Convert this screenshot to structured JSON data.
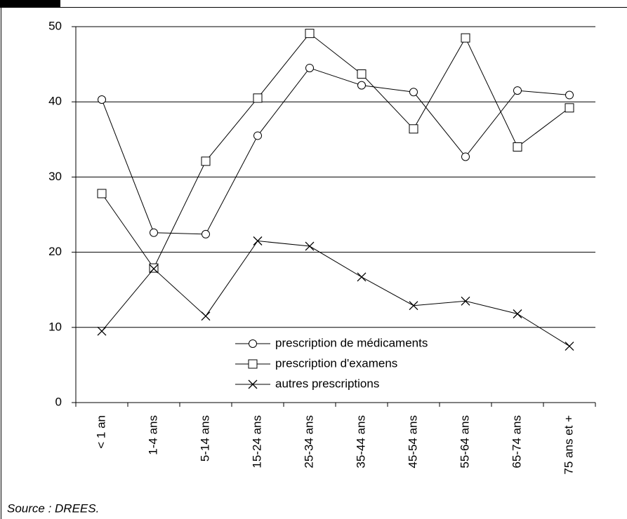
{
  "chart_data": {
    "type": "line",
    "categories": [
      "< 1 an",
      "1-4 ans",
      "5-14 ans",
      "15-24 ans",
      "25-34 ans",
      "35-44 ans",
      "45-54 ans",
      "55-64 ans",
      "65-74 ans",
      "75 ans et +"
    ],
    "series": [
      {
        "name": "prescription de médicaments",
        "color": "#000000",
        "marker": "circle",
        "values": [
          40.3,
          22.6,
          22.4,
          35.5,
          44.5,
          42.2,
          41.3,
          32.7,
          41.5,
          40.9
        ]
      },
      {
        "name": "prescription d'examens",
        "color": "#000000",
        "marker": "square",
        "values": [
          27.8,
          17.9,
          32.1,
          40.5,
          49.1,
          43.7,
          36.4,
          48.5,
          34.0,
          39.2
        ]
      },
      {
        "name": "autres prescriptions",
        "color": "#000000",
        "marker": "x",
        "values": [
          9.5,
          17.8,
          11.5,
          21.5,
          20.8,
          16.7,
          12.9,
          13.5,
          11.8,
          7.5
        ]
      }
    ],
    "ylim": [
      0,
      50
    ],
    "yticks": [
      0,
      10,
      20,
      30,
      40,
      50
    ],
    "grid": true,
    "legend_position": "lower center",
    "source": "Source : DREES."
  }
}
